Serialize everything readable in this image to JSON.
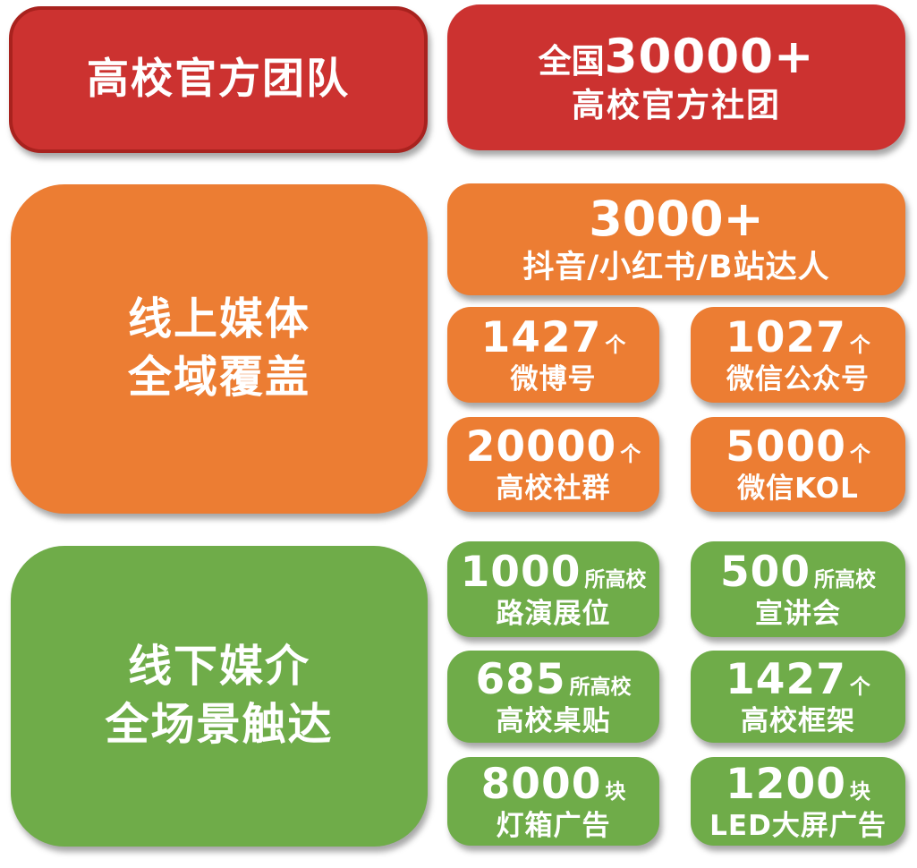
{
  "colors": {
    "red": "#cc3230",
    "red_border": "#a8221e",
    "orange": "#ec7d33",
    "green": "#6fac49",
    "text": "#ffffff",
    "background": "#ffffff"
  },
  "sections": [
    {
      "id": "official-team",
      "color": "red",
      "header": {
        "title": "高校官方团队"
      },
      "stat": {
        "prefix": "全国",
        "number": "30000+",
        "label": "高校官方社团"
      }
    },
    {
      "id": "online-media",
      "color": "orange",
      "header": {
        "title_line1": "线上媒体",
        "title_line2": "全域覆盖"
      },
      "feature": {
        "number": "3000+",
        "label": "抖音/小红书/B站达人"
      },
      "stats": [
        {
          "number": "1427",
          "unit": "个",
          "label": "微博号"
        },
        {
          "number": "1027",
          "unit": "个",
          "label": "微信公众号"
        },
        {
          "number": "20000",
          "unit": "个",
          "label": "高校社群"
        },
        {
          "number": "5000",
          "unit": "个",
          "label": "微信KOL"
        }
      ]
    },
    {
      "id": "offline-media",
      "color": "green",
      "header": {
        "title_line1": "线下媒介",
        "title_line2": "全场景触达"
      },
      "stats": [
        {
          "number": "1000",
          "unit": "所高校",
          "label": "路演展位"
        },
        {
          "number": "500",
          "unit": "所高校",
          "label": "宣讲会"
        },
        {
          "number": "685",
          "unit": "所高校",
          "label": "高校桌贴"
        },
        {
          "number": "1427",
          "unit": "个",
          "label": "高校框架"
        },
        {
          "number": "8000",
          "unit": "块",
          "label": "灯箱广告"
        },
        {
          "number": "1200",
          "unit": "块",
          "label": "LED大屏广告"
        }
      ]
    }
  ]
}
